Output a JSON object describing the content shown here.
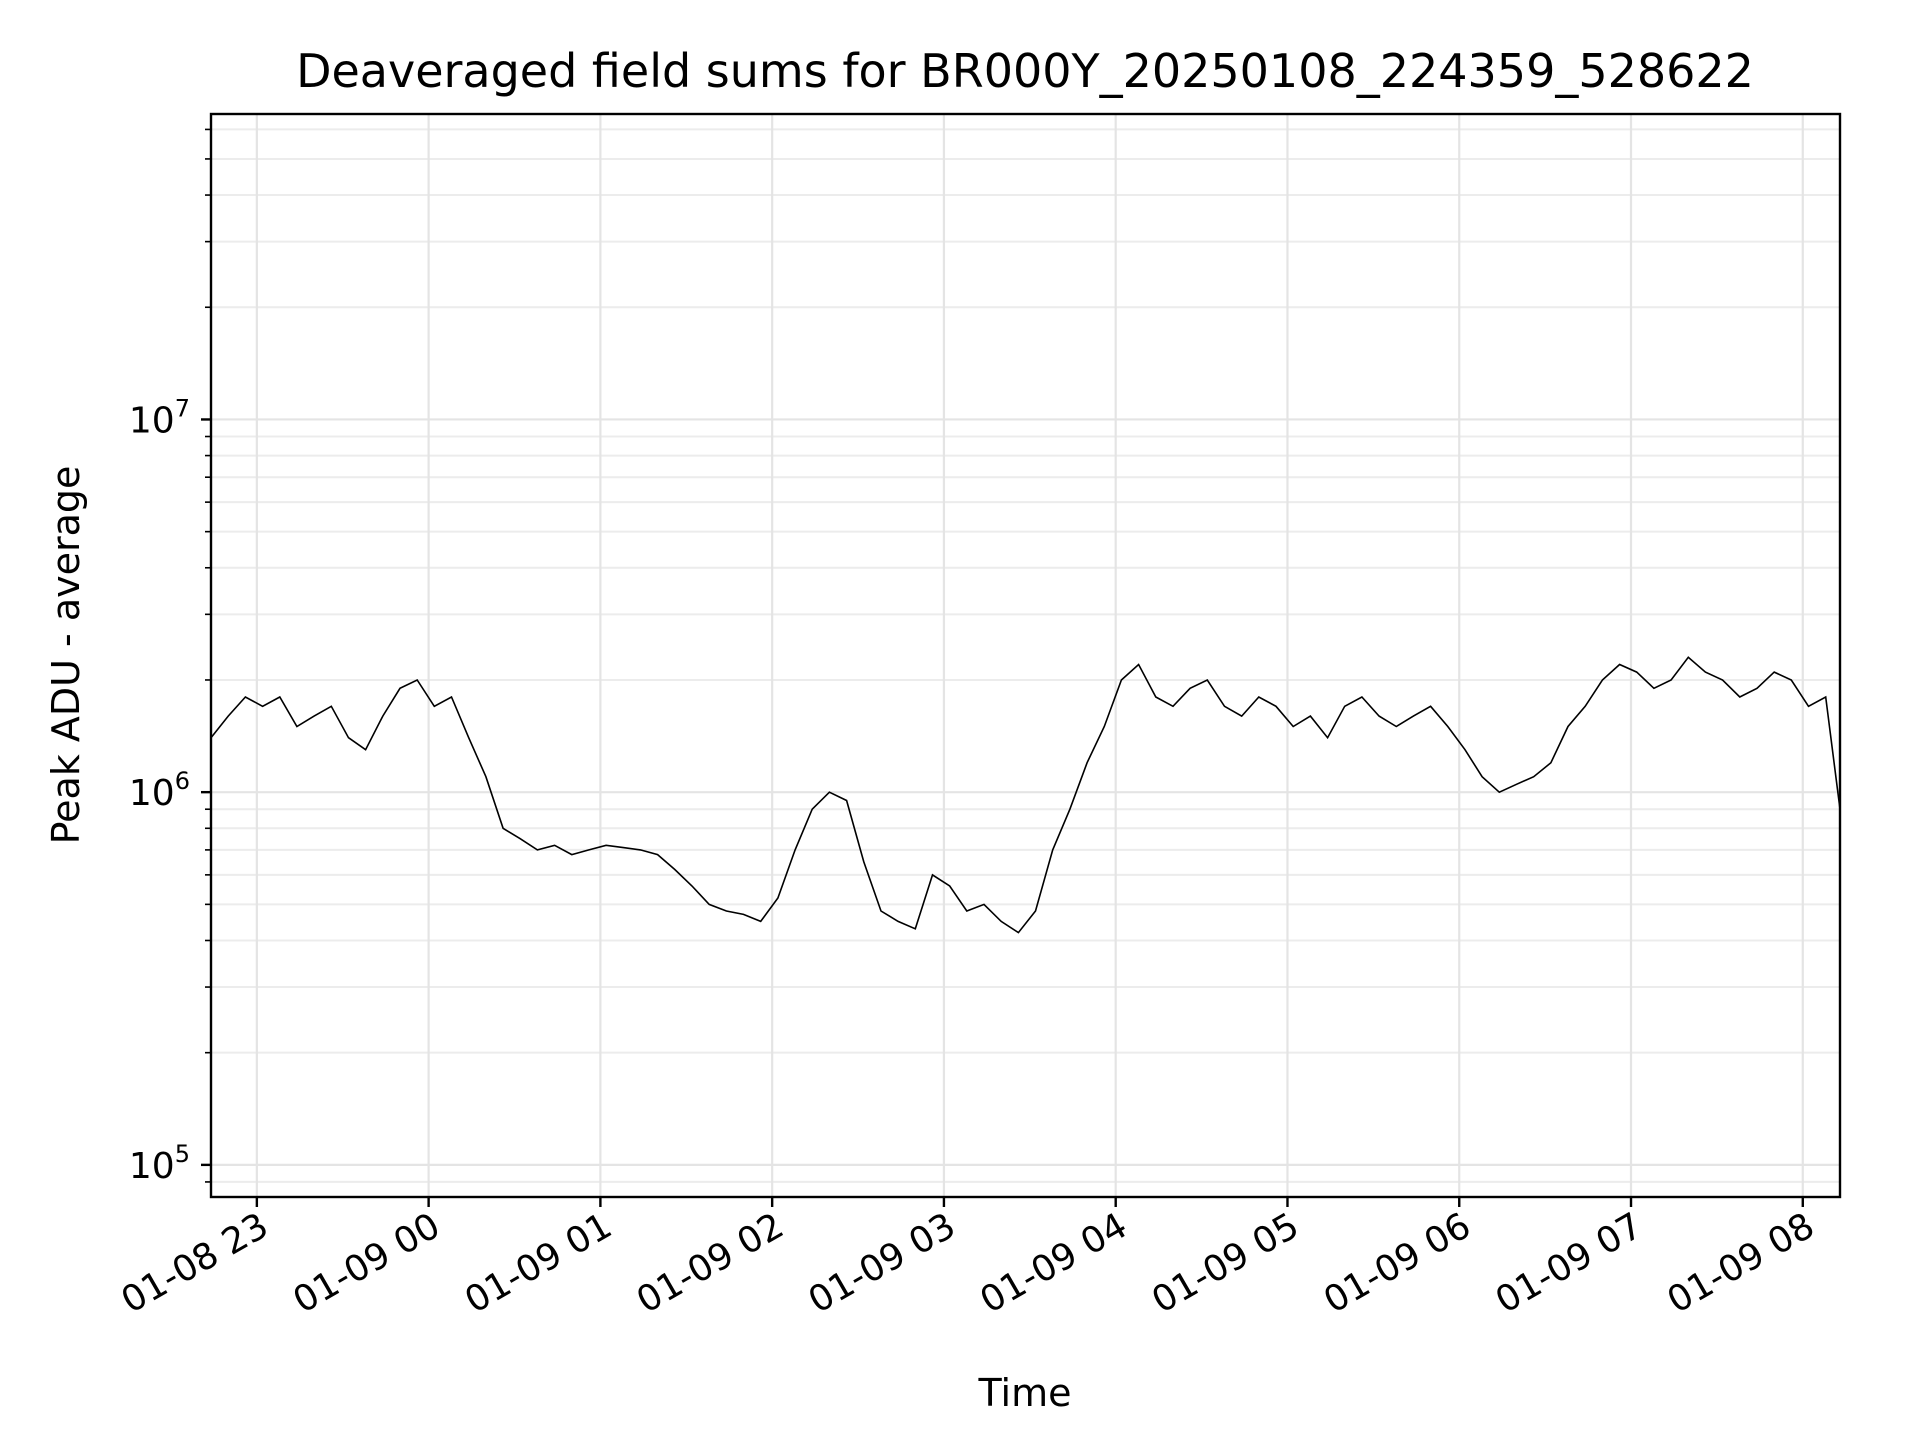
{
  "chart_data": {
    "type": "line",
    "title": "Deaveraged field sums for BR000Y_20250108_224359_528622",
    "xlabel": "Time",
    "ylabel": "Peak ADU - average",
    "yscale": "log",
    "ylim": [
      82000,
      66000000
    ],
    "xlim": [
      "2025-01-08 22:43:59",
      "2025-01-09 08:13:00"
    ],
    "x_tick_labels": [
      "01-08 23",
      "01-09 00",
      "01-09 01",
      "01-09 02",
      "01-09 03",
      "01-09 04",
      "01-09 05",
      "01-09 06",
      "01-09 07",
      "01-09 08"
    ],
    "x_ticks": [
      "2025-01-08 23:00",
      "2025-01-09 00:00",
      "2025-01-09 01:00",
      "2025-01-09 02:00",
      "2025-01-09 03:00",
      "2025-01-09 04:00",
      "2025-01-09 05:00",
      "2025-01-09 06:00",
      "2025-01-09 07:00",
      "2025-01-09 08:00"
    ],
    "y_ticks": [
      {
        "value": 100000,
        "base": "10",
        "exp": "5"
      },
      {
        "value": 1000000,
        "base": "10",
        "exp": "6"
      },
      {
        "value": 10000000,
        "base": "10",
        "exp": "7"
      }
    ],
    "grid": true,
    "series": [
      {
        "color": "#000000",
        "x": [
          "2025-01-08 22:44",
          "2025-01-08 22:50",
          "2025-01-08 22:56",
          "2025-01-08 23:02",
          "2025-01-08 23:08",
          "2025-01-08 23:14",
          "2025-01-08 23:20",
          "2025-01-08 23:26",
          "2025-01-08 23:32",
          "2025-01-08 23:38",
          "2025-01-08 23:44",
          "2025-01-08 23:50",
          "2025-01-08 23:56",
          "2025-01-09 00:02",
          "2025-01-09 00:08",
          "2025-01-09 00:14",
          "2025-01-09 00:20",
          "2025-01-09 00:26",
          "2025-01-09 00:32",
          "2025-01-09 00:38",
          "2025-01-09 00:44",
          "2025-01-09 00:50",
          "2025-01-09 00:56",
          "2025-01-09 01:02",
          "2025-01-09 01:08",
          "2025-01-09 01:14",
          "2025-01-09 01:20",
          "2025-01-09 01:26",
          "2025-01-09 01:32",
          "2025-01-09 01:38",
          "2025-01-09 01:44",
          "2025-01-09 01:50",
          "2025-01-09 01:56",
          "2025-01-09 02:02",
          "2025-01-09 02:08",
          "2025-01-09 02:14",
          "2025-01-09 02:20",
          "2025-01-09 02:26",
          "2025-01-09 02:32",
          "2025-01-09 02:38",
          "2025-01-09 02:44",
          "2025-01-09 02:50",
          "2025-01-09 02:56",
          "2025-01-09 03:02",
          "2025-01-09 03:08",
          "2025-01-09 03:14",
          "2025-01-09 03:20",
          "2025-01-09 03:26",
          "2025-01-09 03:32",
          "2025-01-09 03:38",
          "2025-01-09 03:44",
          "2025-01-09 03:50",
          "2025-01-09 03:56",
          "2025-01-09 04:02",
          "2025-01-09 04:08",
          "2025-01-09 04:14",
          "2025-01-09 04:20",
          "2025-01-09 04:26",
          "2025-01-09 04:32",
          "2025-01-09 04:38",
          "2025-01-09 04:44",
          "2025-01-09 04:50",
          "2025-01-09 04:56",
          "2025-01-09 05:02",
          "2025-01-09 05:08",
          "2025-01-09 05:14",
          "2025-01-09 05:20",
          "2025-01-09 05:26",
          "2025-01-09 05:32",
          "2025-01-09 05:38",
          "2025-01-09 05:44",
          "2025-01-09 05:50",
          "2025-01-09 05:56",
          "2025-01-09 06:02",
          "2025-01-09 06:08",
          "2025-01-09 06:14",
          "2025-01-09 06:20",
          "2025-01-09 06:26",
          "2025-01-09 06:32",
          "2025-01-09 06:38",
          "2025-01-09 06:44",
          "2025-01-09 06:50",
          "2025-01-09 06:56",
          "2025-01-09 07:02",
          "2025-01-09 07:08",
          "2025-01-09 07:14",
          "2025-01-09 07:20",
          "2025-01-09 07:26",
          "2025-01-09 07:32",
          "2025-01-09 07:38",
          "2025-01-09 07:44",
          "2025-01-09 07:50",
          "2025-01-09 07:56",
          "2025-01-09 08:02",
          "2025-01-09 08:08",
          "2025-01-09 08:13"
        ],
        "y": [
          1400000,
          1600000,
          1800000,
          1700000,
          1800000,
          1500000,
          1600000,
          1700000,
          1400000,
          1300000,
          1600000,
          1900000,
          2000000,
          1700000,
          1800000,
          1400000,
          1100000,
          800000,
          750000,
          700000,
          720000,
          680000,
          700000,
          720000,
          710000,
          700000,
          680000,
          620000,
          560000,
          500000,
          480000,
          470000,
          450000,
          520000,
          700000,
          900000,
          1000000,
          950000,
          650000,
          480000,
          450000,
          430000,
          600000,
          560000,
          480000,
          500000,
          450000,
          420000,
          480000,
          700000,
          900000,
          1200000,
          1500000,
          2000000,
          2200000,
          1800000,
          1700000,
          1900000,
          2000000,
          1700000,
          1600000,
          1800000,
          1700000,
          1500000,
          1600000,
          1400000,
          1700000,
          1800000,
          1600000,
          1500000,
          1600000,
          1700000,
          1500000,
          1300000,
          1100000,
          1000000,
          1050000,
          1100000,
          1200000,
          1500000,
          1700000,
          2000000,
          2200000,
          2100000,
          1900000,
          2000000,
          2300000,
          2100000,
          2000000,
          1800000,
          1900000,
          2100000,
          2000000,
          1700000,
          1800000,
          900000
        ]
      }
    ]
  }
}
